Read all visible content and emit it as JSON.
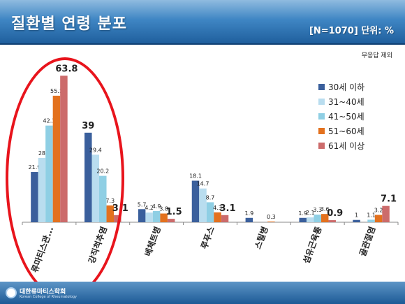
{
  "header": {
    "title": "질환별 연령 분포",
    "subtitle": "[N=1070] 단위: %",
    "note": "무응답 제외"
  },
  "footer": {
    "org_name": "대한류마티스학회",
    "org_sub": "Korean College of Rheumatology"
  },
  "colors": {
    "header_dark": "#1f5f9d",
    "highlight": "#e8141c"
  },
  "chart_data": {
    "type": "bar",
    "categories": [
      "류마티스관...",
      "강직척추염",
      "베체트병",
      "루푸스",
      "스틸병",
      "섬유근육통",
      "골관절염"
    ],
    "series": [
      {
        "name": "30세 이하",
        "color": "#3a5f9c",
        "values": [
          21.9,
          39,
          5.7,
          18.1,
          1.9,
          1.9,
          1
        ]
      },
      {
        "name": "31~40세",
        "color": "#b9ddef",
        "values": [
          28,
          29.4,
          4.2,
          14.7,
          null,
          2.1,
          null
        ]
      },
      {
        "name": "41~50세",
        "color": "#8fcfe4",
        "values": [
          42.1,
          20.2,
          4.9,
          8.7,
          null,
          3.3,
          1.1
        ]
      },
      {
        "name": "51~60세",
        "color": "#e3711e",
        "values": [
          55.1,
          7.3,
          3.8,
          4.3,
          0.3,
          3.6,
          3.2
        ]
      },
      {
        "name": "61세 이상",
        "color": "#cc6b6b",
        "values": [
          63.8,
          3.1,
          1.5,
          3.1,
          null,
          0.9,
          7.1
        ]
      }
    ],
    "value_labels": [
      [
        "21.9",
        "28",
        "42.1",
        "55.1",
        "63.8"
      ],
      [
        "39",
        "29.4",
        "20.2",
        "7.3",
        "3.1"
      ],
      [
        "5.7",
        "4.2",
        "4.9",
        "3.8",
        "1.5"
      ],
      [
        "18.1",
        "14.7",
        "8.7",
        "4.3",
        "3.1"
      ],
      [
        "1.9",
        "",
        "",
        "0.3",
        ""
      ],
      [
        "1.9",
        "2.1",
        "3.3",
        "3.6",
        "0.9"
      ],
      [
        "1",
        "",
        "1.1",
        "3.2",
        "7.1"
      ]
    ],
    "emphasis": [
      [
        0,
        4
      ],
      [
        1,
        0
      ],
      [
        1,
        4
      ],
      [
        2,
        4
      ],
      [
        3,
        4
      ],
      [
        5,
        4
      ],
      [
        6,
        4
      ]
    ],
    "ylim": [
      0,
      70
    ],
    "grid": false,
    "legend_position": "right"
  }
}
